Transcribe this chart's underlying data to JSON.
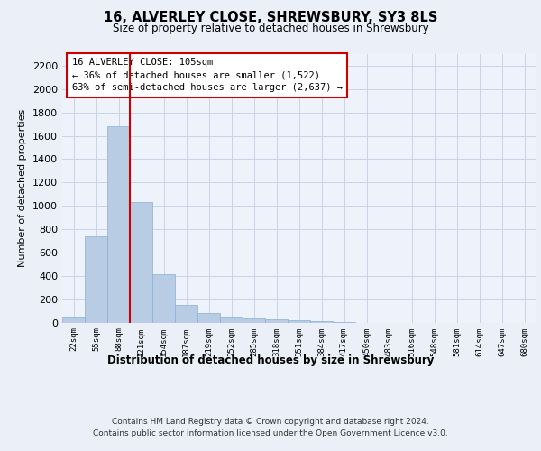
{
  "title_line1": "16, ALVERLEY CLOSE, SHREWSBURY, SY3 8LS",
  "title_line2": "Size of property relative to detached houses in Shrewsbury",
  "xlabel": "Distribution of detached houses by size in Shrewsbury",
  "ylabel": "Number of detached properties",
  "bar_color": "#b8cce4",
  "bar_edge_color": "#8aafd4",
  "bin_labels": [
    "22sqm",
    "55sqm",
    "88sqm",
    "121sqm",
    "154sqm",
    "187sqm",
    "219sqm",
    "252sqm",
    "285sqm",
    "318sqm",
    "351sqm",
    "384sqm",
    "417sqm",
    "450sqm",
    "483sqm",
    "516sqm",
    "548sqm",
    "581sqm",
    "614sqm",
    "647sqm",
    "680sqm"
  ],
  "bar_heights": [
    52,
    740,
    1680,
    1035,
    410,
    152,
    82,
    48,
    38,
    28,
    18,
    8,
    5,
    0,
    0,
    0,
    0,
    0,
    0,
    0,
    0
  ],
  "vline_x": 2.5,
  "annotation_title": "16 ALVERLEY CLOSE: 105sqm",
  "annotation_line1": "← 36% of detached houses are smaller (1,522)",
  "annotation_line2": "63% of semi-detached houses are larger (2,637) →",
  "ylim": [
    0,
    2300
  ],
  "yticks": [
    0,
    200,
    400,
    600,
    800,
    1000,
    1200,
    1400,
    1600,
    1800,
    2000,
    2200
  ],
  "footer_line1": "Contains HM Land Registry data © Crown copyright and database right 2024.",
  "footer_line2": "Contains public sector information licensed under the Open Government Licence v3.0.",
  "bg_color": "#eaeff8",
  "plot_bg_color": "#eef2fb",
  "grid_color": "#c8d4e8",
  "red_line_color": "#cc0000",
  "annotation_box_color": "#ffffff",
  "annotation_box_edge": "#cc0000"
}
